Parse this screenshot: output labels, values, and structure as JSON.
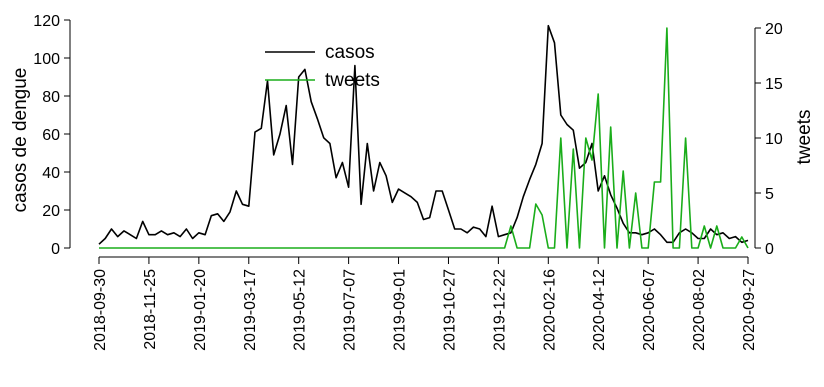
{
  "chart_data": {
    "type": "line",
    "ylabel_left": "casos de dengue",
    "ylabel_right": "tweets",
    "ylim_left": [
      0,
      120
    ],
    "yticks_left": [
      0,
      20,
      40,
      60,
      80,
      100,
      120
    ],
    "ylim_right": [
      0,
      20
    ],
    "yticks_right": [
      0,
      5,
      10,
      15,
      20
    ],
    "x_ticks": [
      "2018-09-30",
      "2018-11-25",
      "2019-01-20",
      "2019-03-17",
      "2019-05-12",
      "2019-07-07",
      "2019-09-01",
      "2019-10-27",
      "2019-12-22",
      "2020-02-16",
      "2020-04-12",
      "2020-06-07",
      "2020-08-02",
      "2020-09-27"
    ],
    "legend": {
      "position": "top-center",
      "entries": [
        {
          "label": "casos",
          "color": "#000000"
        },
        {
          "label": "tweets",
          "color": "#1aad1a"
        }
      ]
    },
    "series": [
      {
        "name": "casos",
        "axis": "left",
        "color": "#000000",
        "x": [
          "2018-09-30",
          "2018-10-07",
          "2018-10-14",
          "2018-10-21",
          "2018-10-28",
          "2018-11-04",
          "2018-11-11",
          "2018-11-18",
          "2018-11-25",
          "2018-12-02",
          "2018-12-09",
          "2018-12-16",
          "2018-12-23",
          "2018-12-30",
          "2019-01-06",
          "2019-01-13",
          "2019-01-20",
          "2019-01-27",
          "2019-02-03",
          "2019-02-10",
          "2019-02-17",
          "2019-02-24",
          "2019-03-03",
          "2019-03-10",
          "2019-03-17",
          "2019-03-24",
          "2019-03-31",
          "2019-04-07",
          "2019-04-14",
          "2019-04-21",
          "2019-04-28",
          "2019-05-05",
          "2019-05-12",
          "2019-05-19",
          "2019-05-26",
          "2019-06-02",
          "2019-06-09",
          "2019-06-16",
          "2019-06-23",
          "2019-06-30",
          "2019-07-07",
          "2019-07-14",
          "2019-07-21",
          "2019-07-28",
          "2019-08-04",
          "2019-08-11",
          "2019-08-18",
          "2019-08-25",
          "2019-09-01",
          "2019-09-08",
          "2019-09-15",
          "2019-09-22",
          "2019-09-29",
          "2019-10-06",
          "2019-10-13",
          "2019-10-20",
          "2019-10-27",
          "2019-11-03",
          "2019-11-10",
          "2019-11-17",
          "2019-11-24",
          "2019-12-01",
          "2019-12-08",
          "2019-12-15",
          "2019-12-22",
          "2019-12-29",
          "2020-01-05",
          "2020-01-12",
          "2020-01-19",
          "2020-01-26",
          "2020-02-02",
          "2020-02-09",
          "2020-02-16",
          "2020-02-23",
          "2020-03-01",
          "2020-03-08",
          "2020-03-15",
          "2020-03-22",
          "2020-03-29",
          "2020-04-05",
          "2020-04-12",
          "2020-04-19",
          "2020-04-26",
          "2020-05-03",
          "2020-05-10",
          "2020-05-17",
          "2020-05-24",
          "2020-05-31",
          "2020-06-07",
          "2020-06-14",
          "2020-06-21",
          "2020-06-28",
          "2020-07-05",
          "2020-07-12",
          "2020-07-19",
          "2020-07-26",
          "2020-08-02",
          "2020-08-09",
          "2020-08-16",
          "2020-08-23",
          "2020-08-30",
          "2020-09-06",
          "2020-09-13",
          "2020-09-20",
          "2020-09-27"
        ],
        "y": [
          2,
          5,
          10,
          6,
          9,
          7,
          5,
          14,
          7,
          7,
          9,
          7,
          8,
          6,
          10,
          5,
          8,
          7,
          17,
          18,
          14,
          19,
          30,
          23,
          22,
          61,
          63,
          88,
          49,
          60,
          75,
          44,
          90,
          94,
          77,
          68,
          58,
          55,
          37,
          45,
          32,
          96,
          23,
          55,
          30,
          45,
          38,
          24,
          31,
          29,
          27,
          24,
          15,
          16,
          30,
          30,
          20,
          10,
          10,
          8,
          11,
          10,
          6,
          22,
          6,
          7,
          8,
          16,
          27,
          36,
          44,
          55,
          117,
          108,
          70,
          65,
          62,
          42,
          45,
          55,
          30,
          38,
          28,
          21,
          13,
          8,
          8,
          7,
          8,
          10,
          7,
          3,
          3,
          8,
          10,
          8,
          5,
          5,
          10,
          7,
          8,
          5,
          6,
          3,
          4
        ]
      },
      {
        "name": "tweets",
        "axis": "right",
        "color": "#1aad1a",
        "x": [
          "2018-09-30",
          "2019-12-29",
          "2020-01-05",
          "2020-01-12",
          "2020-01-19",
          "2020-01-26",
          "2020-02-02",
          "2020-02-09",
          "2020-02-16",
          "2020-02-23",
          "2020-03-01",
          "2020-03-08",
          "2020-03-15",
          "2020-03-22",
          "2020-03-29",
          "2020-04-05",
          "2020-04-12",
          "2020-04-19",
          "2020-04-26",
          "2020-05-03",
          "2020-05-10",
          "2020-05-17",
          "2020-05-24",
          "2020-05-31",
          "2020-06-07",
          "2020-06-14",
          "2020-06-21",
          "2020-06-28",
          "2020-07-05",
          "2020-07-12",
          "2020-07-19",
          "2020-07-26",
          "2020-08-02",
          "2020-08-09",
          "2020-08-16",
          "2020-08-23",
          "2020-08-30",
          "2020-09-06",
          "2020-09-13",
          "2020-09-20",
          "2020-09-27"
        ],
        "y": [
          0,
          0,
          2,
          0,
          0,
          0,
          4,
          3,
          0,
          0,
          10,
          0,
          9,
          0,
          10,
          8,
          14,
          0,
          11,
          0,
          7,
          0,
          5,
          0,
          0,
          6,
          6,
          20,
          0,
          0,
          10,
          0,
          0,
          2,
          0,
          2,
          0,
          0,
          0,
          1,
          0
        ]
      }
    ]
  }
}
